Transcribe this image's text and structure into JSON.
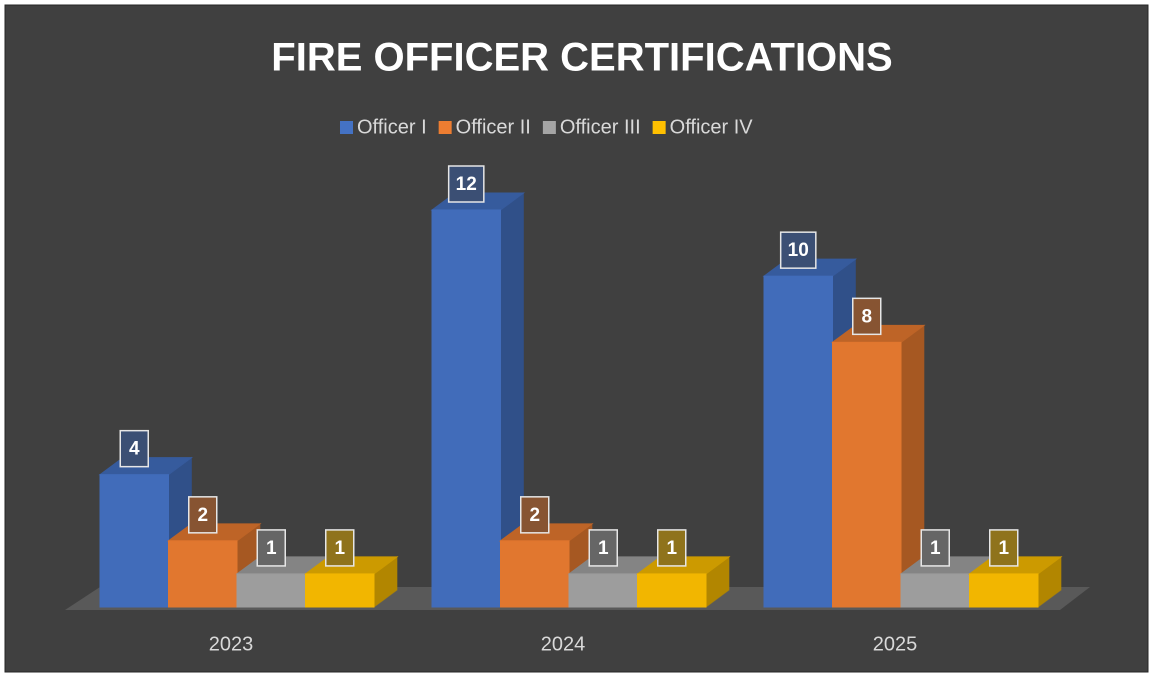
{
  "chart_data": {
    "type": "bar3d",
    "title": "FIRE OFFICER CERTIFICATIONS",
    "categories": [
      "2023",
      "2024",
      "2025"
    ],
    "series": [
      {
        "name": "Officer I",
        "color": "#4472c4",
        "values": [
          4,
          12,
          10
        ]
      },
      {
        "name": "Officer II",
        "color": "#ed7d31",
        "values": [
          2,
          2,
          8
        ]
      },
      {
        "name": "Officer III",
        "color": "#a5a5a5",
        "values": [
          1,
          1,
          1
        ]
      },
      {
        "name": "Officer IV",
        "color": "#ffc000",
        "values": [
          1,
          1,
          1
        ]
      }
    ],
    "ylim": [
      0,
      12
    ],
    "legend": "top"
  }
}
